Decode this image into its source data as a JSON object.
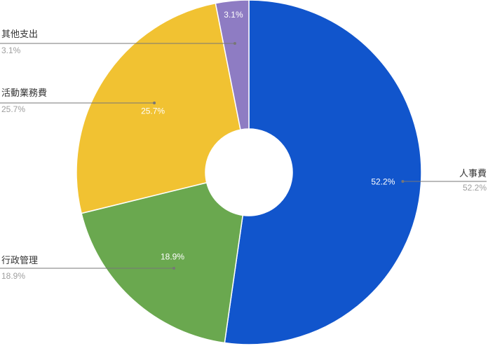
{
  "chart_data": {
    "type": "pie",
    "donut": true,
    "title": "",
    "slices": [
      {
        "label": "人事費",
        "value": 52.2,
        "display": "52.2%",
        "color": "#1155cc"
      },
      {
        "label": "行政管理",
        "value": 18.9,
        "display": "18.9%",
        "color": "#6aa84f"
      },
      {
        "label": "活動業務費",
        "value": 25.7,
        "display": "25.7%",
        "color": "#f1c232"
      },
      {
        "label": "其他支出",
        "value": 3.1,
        "display": "3.1%",
        "color": "#8e7cc3"
      }
    ],
    "legend": "none"
  }
}
